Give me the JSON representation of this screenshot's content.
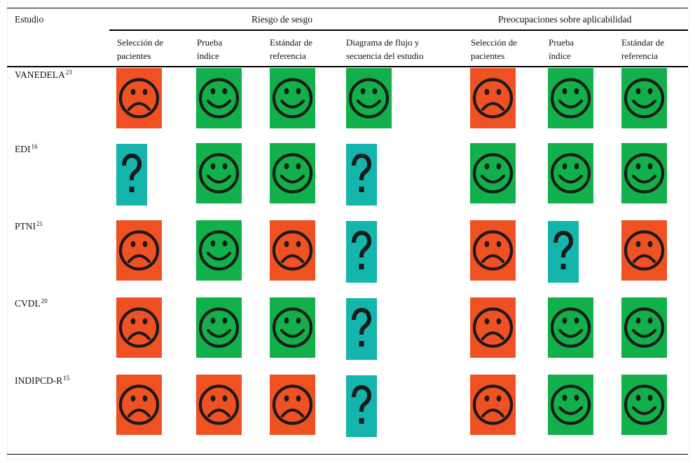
{
  "table": {
    "corner_header": "Estudio",
    "group_headers": [
      "Riesgo de sesgo",
      "Preocupaciones sobre aplicabilidad"
    ],
    "sub_headers": [
      [
        "Selección de",
        "pacientes"
      ],
      [
        "Prueba",
        "índice"
      ],
      [
        "Estándar de",
        "referencia"
      ],
      [
        "Diagrama de flujo y",
        "secuencia del estudio"
      ],
      [
        "Selección de",
        "pacientes"
      ],
      [
        "Prueba",
        "índice"
      ],
      [
        "Estándar de",
        "referencia"
      ]
    ],
    "legend_colors": {
      "high": "#f05123",
      "low": "#12b04a",
      "unclear": "#13b5ad"
    },
    "icon_names": {
      "high": "sad-face-icon",
      "low": "smiley-face-icon",
      "unclear": "question-mark-icon"
    },
    "rows": [
      {
        "name": "VANEDELA",
        "ref": "23",
        "ratings": [
          "high",
          "low",
          "low",
          "low",
          "high",
          "low",
          "low"
        ]
      },
      {
        "name": "EDI",
        "ref": "16",
        "ratings": [
          "unclear",
          "low",
          "low",
          "unclear",
          "low",
          "low",
          "low"
        ]
      },
      {
        "name": "PTNI",
        "ref": "21",
        "ratings": [
          "high",
          "low",
          "high",
          "unclear",
          "high",
          "unclear",
          "high"
        ]
      },
      {
        "name": "CVDL",
        "ref": "20",
        "ratings": [
          "high",
          "low",
          "low",
          "unclear",
          "high",
          "low",
          "low"
        ]
      },
      {
        "name": "INDIPCD-R",
        "ref": "15",
        "ratings": [
          "high",
          "high",
          "high",
          "unclear",
          "high",
          "low",
          "low"
        ]
      }
    ]
  }
}
